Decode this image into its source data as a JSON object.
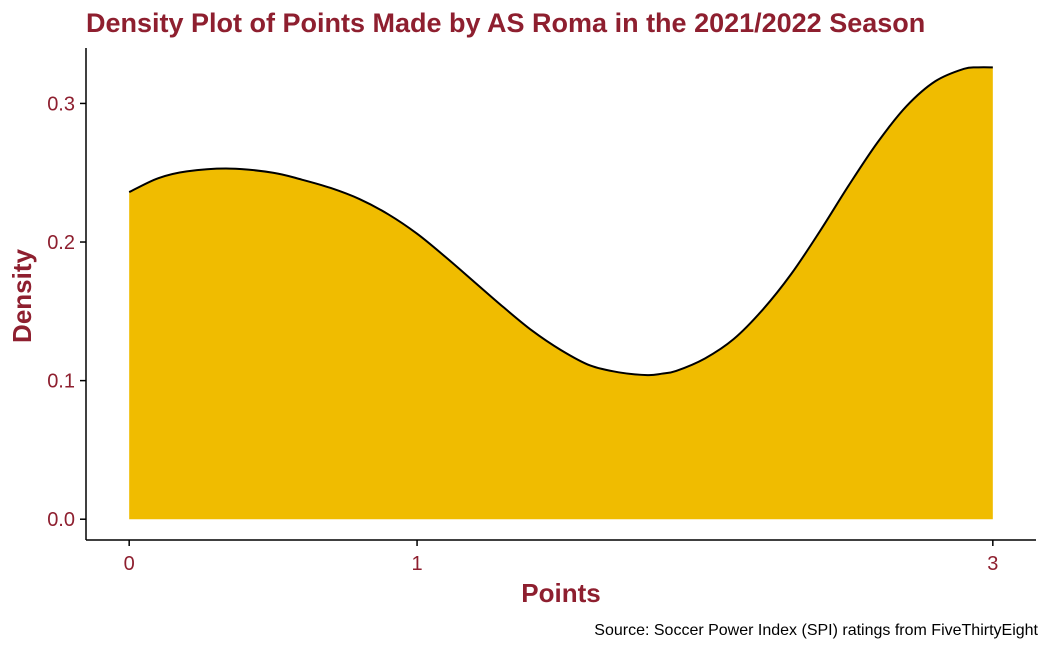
{
  "chart_data": {
    "type": "area",
    "title": "Density Plot of Points Made by AS Roma in the 2021/2022 Season",
    "xlabel": "Points",
    "ylabel": "Density",
    "caption": "Source: Soccer Power Index (SPI) ratings from FiveThirtyEight",
    "xlim": [
      -0.15,
      3.15
    ],
    "ylim": [
      -0.015,
      0.34
    ],
    "x_ticks": [
      0,
      1,
      3
    ],
    "x_tick_labels": [
      "0",
      "1",
      "3"
    ],
    "y_ticks": [
      0.0,
      0.1,
      0.2,
      0.3
    ],
    "y_tick_labels": [
      "0.0",
      "0.1",
      "0.2",
      "0.3"
    ],
    "grid": false,
    "legend": "none",
    "series": [
      {
        "x": [
          0,
          0.1,
          0.2,
          0.35,
          0.5,
          0.6,
          0.7,
          0.8,
          0.9,
          1.0,
          1.1,
          1.2,
          1.3,
          1.4,
          1.5,
          1.6,
          1.7,
          1.8,
          1.85,
          1.9,
          2.0,
          2.1,
          2.2,
          2.3,
          2.4,
          2.5,
          2.6,
          2.7,
          2.8,
          2.9,
          2.95,
          3.0
        ],
        "y": [
          0.236,
          0.246,
          0.251,
          0.253,
          0.25,
          0.245,
          0.239,
          0.231,
          0.22,
          0.206,
          0.189,
          0.171,
          0.153,
          0.136,
          0.122,
          0.111,
          0.106,
          0.104,
          0.105,
          0.107,
          0.116,
          0.13,
          0.151,
          0.177,
          0.208,
          0.241,
          0.272,
          0.298,
          0.316,
          0.325,
          0.326,
          0.326
        ]
      }
    ]
  },
  "colors": {
    "fill": "#F0BC00",
    "outline": "#000000",
    "text_accent": "#8E1F2F",
    "axis": "#000000"
  }
}
